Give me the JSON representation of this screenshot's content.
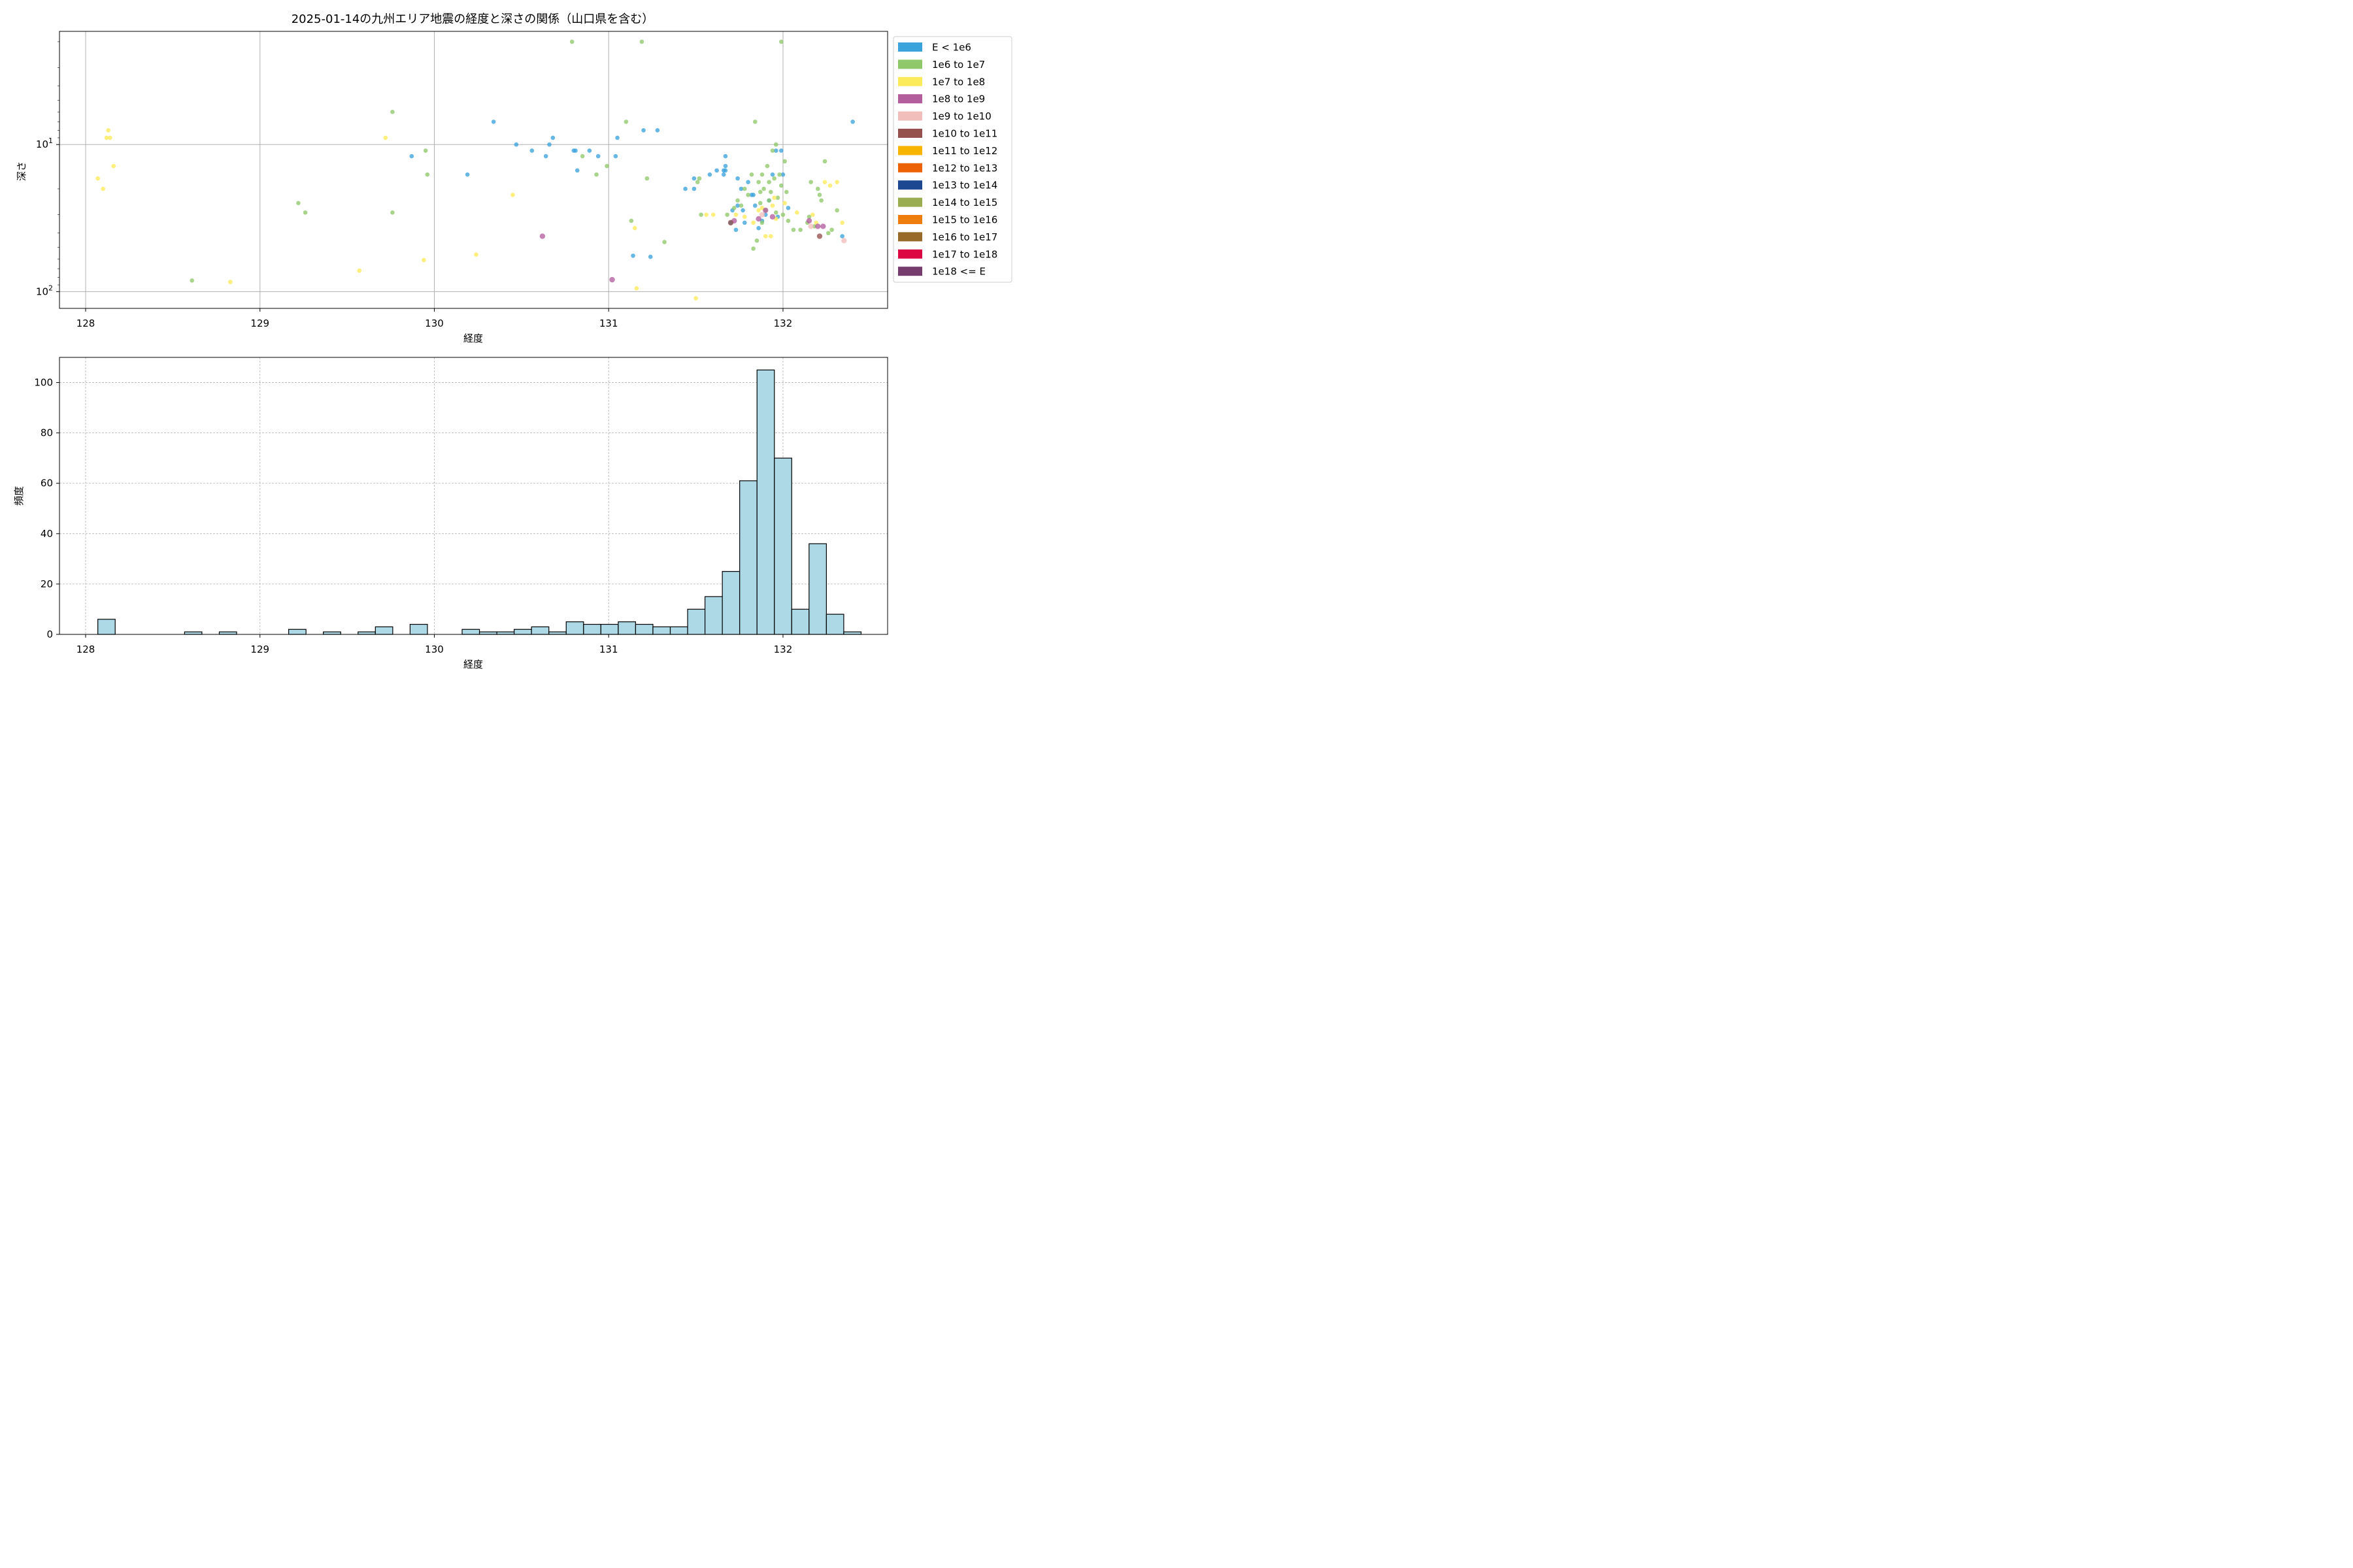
{
  "chart_data": [
    {
      "type": "scatter",
      "title": "2025-01-14の九州エリア地震の経度と深さの関係（山口県を含む）",
      "xlabel": "経度",
      "ylabel": "深さ",
      "xlim": [
        127.85,
        132.6
      ],
      "ylim": [
        130,
        1.7
      ],
      "yscale": "log",
      "y_inverted": true,
      "grid": true,
      "x_ticks": [
        128,
        129,
        130,
        131,
        132
      ],
      "y_ticks": [
        {
          "value": 10,
          "label_base": "10",
          "label_exp": "1"
        },
        {
          "value": 100,
          "label_base": "10",
          "label_exp": "2"
        }
      ],
      "legend_position": "outside-right",
      "legend": [
        {
          "label": "E < 1e6",
          "color": "#3ba3dc"
        },
        {
          "label": "1e6 to 1e7",
          "color": "#8fc86a"
        },
        {
          "label": "1e7 to 1e8",
          "color": "#fbea5a"
        },
        {
          "label": "1e8 to 1e9",
          "color": "#b45d9d"
        },
        {
          "label": "1e9 to 1e10",
          "color": "#f2bebb"
        },
        {
          "label": "1e10 to 1e11",
          "color": "#95514d"
        },
        {
          "label": "1e11 to 1e12",
          "color": "#f7b500"
        },
        {
          "label": "1e12 to 1e13",
          "color": "#ee6206"
        },
        {
          "label": "1e13 to 1e14",
          "color": "#1d4891"
        },
        {
          "label": "1e14 to 1e15",
          "color": "#9aad50"
        },
        {
          "label": "1e15 to 1e16",
          "color": "#ee7d0d"
        },
        {
          "label": "1e16 to 1e17",
          "color": "#976a2a"
        },
        {
          "label": "1e17 to 1e18",
          "color": "#dc0841"
        },
        {
          "label": "1e18 <= E",
          "color": "#763c6d"
        }
      ],
      "series": [
        {
          "class": 0,
          "points": [
            [
              129.87,
              12.0
            ],
            [
              130.19,
              16.0
            ],
            [
              130.34,
              7.0
            ],
            [
              130.47,
              10.0
            ],
            [
              130.56,
              11.0
            ],
            [
              130.64,
              12.0
            ],
            [
              130.66,
              10.0
            ],
            [
              130.68,
              9.0
            ],
            [
              130.8,
              11.0
            ],
            [
              130.81,
              11.0
            ],
            [
              130.82,
              15.0
            ],
            [
              130.89,
              11.0
            ],
            [
              130.94,
              12.0
            ],
            [
              131.04,
              12.0
            ],
            [
              131.05,
              9.0
            ],
            [
              131.14,
              57.0
            ],
            [
              131.2,
              8.0
            ],
            [
              131.24,
              58.0
            ],
            [
              131.28,
              8.0
            ],
            [
              131.44,
              20.0
            ],
            [
              131.49,
              17.0
            ],
            [
              131.49,
              20.0
            ],
            [
              131.58,
              16.0
            ],
            [
              131.62,
              15.0
            ],
            [
              131.66,
              15.0
            ],
            [
              131.66,
              16.0
            ],
            [
              131.67,
              14.0
            ],
            [
              131.67,
              15.0
            ],
            [
              131.67,
              12.0
            ],
            [
              131.71,
              28.0
            ],
            [
              131.73,
              38.0
            ],
            [
              131.74,
              17.0
            ],
            [
              131.76,
              20.0
            ],
            [
              131.78,
              34.0
            ],
            [
              131.8,
              18.0
            ],
            [
              131.82,
              22.0
            ],
            [
              131.83,
              22.0
            ],
            [
              131.84,
              26.0
            ],
            [
              131.86,
              37.0
            ],
            [
              131.88,
              33.0
            ],
            [
              131.9,
              30.0
            ],
            [
              131.92,
              24.0
            ],
            [
              131.94,
              16.0
            ],
            [
              131.96,
              11.0
            ],
            [
              131.97,
              31.0
            ],
            [
              131.99,
              11.0
            ],
            [
              131.7,
              34.0
            ],
            [
              131.74,
              26.0
            ],
            [
              131.77,
              28.0
            ],
            [
              132.0,
              16.0
            ],
            [
              132.03,
              27.0
            ],
            [
              132.34,
              42.0
            ],
            [
              132.4,
              7.0
            ]
          ]
        },
        {
          "class": 1,
          "points": [
            [
              128.61,
              84.0
            ],
            [
              129.22,
              25.0
            ],
            [
              129.26,
              29.0
            ],
            [
              129.76,
              6.0
            ],
            [
              129.76,
              29.0
            ],
            [
              129.95,
              11.0
            ],
            [
              129.96,
              16.0
            ],
            [
              130.79,
              2.0
            ],
            [
              130.85,
              12.0
            ],
            [
              130.93,
              16.0
            ],
            [
              130.99,
              14.0
            ],
            [
              131.1,
              7.0
            ],
            [
              131.13,
              33.0
            ],
            [
              131.19,
              2.0
            ],
            [
              131.22,
              17.0
            ],
            [
              131.32,
              46.0
            ],
            [
              131.51,
              18.0
            ],
            [
              131.52,
              17.0
            ],
            [
              131.53,
              30.0
            ],
            [
              131.68,
              30.0
            ],
            [
              131.72,
              27.0
            ],
            [
              131.74,
              24.0
            ],
            [
              131.76,
              26.0
            ],
            [
              131.8,
              22.0
            ],
            [
              131.82,
              16.0
            ],
            [
              131.83,
              51.0
            ],
            [
              131.84,
              7.0
            ],
            [
              131.85,
              45.0
            ],
            [
              131.86,
              18.0
            ],
            [
              131.87,
              21.0
            ],
            [
              131.87,
              25.0
            ],
            [
              131.88,
              16.0
            ],
            [
              131.89,
              20.0
            ],
            [
              131.9,
              28.0
            ],
            [
              131.91,
              14.0
            ],
            [
              131.92,
              18.0
            ],
            [
              131.92,
              24.0
            ],
            [
              131.93,
              21.0
            ],
            [
              131.94,
              11.0
            ],
            [
              131.95,
              17.0
            ],
            [
              131.96,
              10.0
            ],
            [
              131.97,
              23.0
            ],
            [
              131.98,
              16.0
            ],
            [
              131.99,
              19.0
            ],
            [
              131.99,
              2.0
            ],
            [
              132.0,
              30.0
            ],
            [
              132.01,
              13.0
            ],
            [
              132.02,
              21.0
            ],
            [
              132.03,
              33.0
            ],
            [
              132.06,
              38.0
            ],
            [
              132.1,
              38.0
            ],
            [
              132.14,
              34.0
            ],
            [
              132.16,
              18.0
            ],
            [
              132.18,
              36.0
            ],
            [
              132.2,
              20.0
            ],
            [
              132.21,
              22.0
            ],
            [
              132.22,
              24.0
            ],
            [
              132.24,
              13.0
            ],
            [
              132.26,
              40.0
            ],
            [
              132.28,
              38.0
            ],
            [
              132.31,
              28.0
            ],
            [
              132.15,
              31.0
            ],
            [
              131.78,
              20.0
            ],
            [
              131.88,
              34.0
            ],
            [
              131.96,
              29.0
            ]
          ]
        },
        {
          "class": 2,
          "points": [
            [
              128.07,
              17.0
            ],
            [
              128.1,
              20.0
            ],
            [
              128.12,
              9.0
            ],
            [
              128.13,
              8.0
            ],
            [
              128.14,
              9.0
            ],
            [
              128.16,
              14.0
            ],
            [
              128.83,
              86.0
            ],
            [
              129.57,
              72.0
            ],
            [
              129.72,
              9.0
            ],
            [
              129.94,
              61.0
            ],
            [
              130.24,
              56.0
            ],
            [
              130.45,
              22.0
            ],
            [
              131.15,
              37.0
            ],
            [
              131.16,
              95.0
            ],
            [
              131.5,
              111.0
            ],
            [
              131.56,
              30.0
            ],
            [
              131.6,
              30.0
            ],
            [
              131.73,
              30.0
            ],
            [
              131.78,
              31.0
            ],
            [
              131.86,
              28.0
            ],
            [
              131.88,
              27.0
            ],
            [
              131.9,
              42.0
            ],
            [
              131.93,
              42.0
            ],
            [
              131.95,
              23.0
            ],
            [
              131.96,
              32.0
            ],
            [
              132.01,
              25.0
            ],
            [
              132.08,
              29.0
            ],
            [
              132.17,
              30.0
            ],
            [
              132.19,
              34.0
            ],
            [
              132.24,
              18.0
            ],
            [
              132.27,
              19.0
            ],
            [
              132.31,
              18.0
            ],
            [
              132.34,
              34.0
            ],
            [
              131.83,
              34.0
            ],
            [
              131.94,
              26.0
            ]
          ]
        },
        {
          "class": 3,
          "points": [
            [
              130.62,
              42.0
            ],
            [
              131.02,
              83.0
            ],
            [
              131.72,
              33.0
            ],
            [
              131.86,
              32.0
            ],
            [
              131.9,
              28.0
            ],
            [
              131.94,
              31.0
            ],
            [
              132.15,
              33.0
            ],
            [
              132.2,
              36.0
            ],
            [
              132.23,
              36.0
            ]
          ]
        },
        {
          "class": 4,
          "points": [
            [
              131.88,
              30.0
            ],
            [
              132.16,
              36.0
            ],
            [
              132.35,
              45.0
            ]
          ]
        },
        {
          "class": 5,
          "points": [
            [
              131.7,
              34.0
            ],
            [
              132.21,
              42.0
            ]
          ]
        }
      ]
    },
    {
      "type": "histogram",
      "title": "",
      "xlabel": "経度",
      "ylabel": "頻度",
      "xlim": [
        127.85,
        132.6
      ],
      "ylim": [
        0,
        110
      ],
      "grid": true,
      "x_ticks": [
        128,
        129,
        130,
        131,
        132
      ],
      "y_ticks": [
        0,
        20,
        40,
        60,
        80,
        100
      ],
      "bar_color": "#add8e6",
      "bin_start": 128.07,
      "bin_width": 0.0995,
      "counts": [
        6,
        0,
        0,
        0,
        0,
        1,
        0,
        1,
        0,
        0,
        0,
        2,
        0,
        1,
        0,
        1,
        3,
        0,
        4,
        0,
        0,
        2,
        1,
        1,
        2,
        3,
        1,
        5,
        4,
        4,
        5,
        4,
        3,
        3,
        10,
        15,
        25,
        61,
        105,
        70,
        10,
        36,
        8,
        1
      ]
    }
  ]
}
